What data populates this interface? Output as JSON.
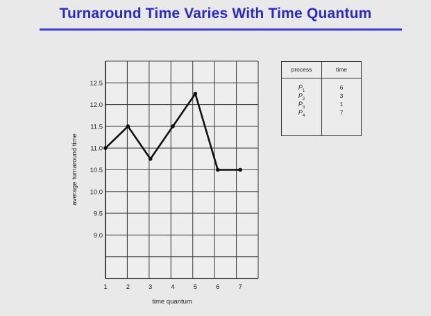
{
  "title": "Turnaround Time Varies With Time Quantum",
  "accent_color": "#2a2ac8",
  "chart_data": {
    "type": "line",
    "title": "",
    "xlabel": "time quantum",
    "ylabel": "average turnaround time",
    "x": [
      1,
      2,
      3,
      4,
      5,
      6,
      7
    ],
    "y": [
      11.0,
      11.5,
      10.75,
      11.5,
      12.25,
      10.5,
      10.5
    ],
    "x_ticks": [
      "1",
      "2",
      "3",
      "4",
      "5",
      "6",
      "7"
    ],
    "y_ticks": [
      "12.5",
      "12.0",
      "11.5",
      "11.0",
      "10.5",
      "10.0",
      "9.5",
      "9.0"
    ],
    "xlim": [
      1,
      7.8
    ],
    "ylim": [
      8.0,
      13.0
    ],
    "grid": true,
    "legend": "none"
  },
  "table": {
    "headers": [
      "process",
      "time"
    ],
    "rows": [
      {
        "process": "P",
        "sub": "1",
        "time": "6"
      },
      {
        "process": "P",
        "sub": "2",
        "time": "3"
      },
      {
        "process": "P",
        "sub": "3",
        "time": "1"
      },
      {
        "process": "P",
        "sub": "4",
        "time": "7"
      }
    ]
  }
}
